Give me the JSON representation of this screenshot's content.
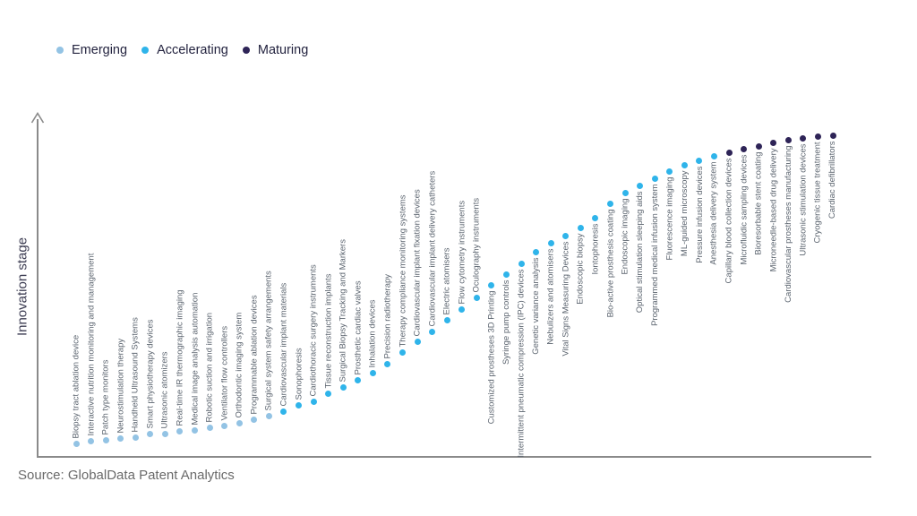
{
  "legend": {
    "items": [
      {
        "label": "Emerging",
        "color": "#93c3e4"
      },
      {
        "label": "Accelerating",
        "color": "#2fb4ea"
      },
      {
        "label": "Maturing",
        "color": "#2e2457"
      }
    ]
  },
  "source_text": "Source: GlobalData Patent Analytics",
  "chart_data": {
    "type": "scatter",
    "title": "",
    "xlabel": "",
    "ylabel": "Innovation stage",
    "grid": false,
    "legend_position": "top-left",
    "y_axis_numeric_labels": false,
    "score_note": "score is 0-100 innovation-stage height estimated from dot position; no numeric axis shown in chart",
    "stage_colors": {
      "Emerging": "#93c3e4",
      "Accelerating": "#2fb4ea",
      "Maturing": "#2e2457"
    },
    "points": [
      {
        "label": "Biopsy tract ablation device",
        "stage": "Emerging",
        "score": 4.1
      },
      {
        "label": "Interactive nutrition monitoring and management",
        "stage": "Emerging",
        "score": 4.7
      },
      {
        "label": "Patch type monitors",
        "stage": "Emerging",
        "score": 5.2
      },
      {
        "label": "Neurostimulation therapy",
        "stage": "Emerging",
        "score": 5.5
      },
      {
        "label": "Handheld Ultrasound Systems",
        "stage": "Emerging",
        "score": 6.0
      },
      {
        "label": "Smart physiotherapy devices",
        "stage": "Emerging",
        "score": 6.9
      },
      {
        "label": "Ultrasonic atomizers",
        "stage": "Emerging",
        "score": 7.1
      },
      {
        "label": "Real-time IR thermographic imaging",
        "stage": "Emerging",
        "score": 7.7
      },
      {
        "label": "Medical image analysis automation",
        "stage": "Emerging",
        "score": 8.2
      },
      {
        "label": "Robotic suction and irrigation",
        "stage": "Emerging",
        "score": 8.8
      },
      {
        "label": "Ventilator flow controllers",
        "stage": "Emerging",
        "score": 9.6
      },
      {
        "label": "Orthodontic imaging system",
        "stage": "Emerging",
        "score": 10.4
      },
      {
        "label": "Programmable ablation devices",
        "stage": "Emerging",
        "score": 11.3
      },
      {
        "label": "Surgical system safety arrangements",
        "stage": "Emerging",
        "score": 12.4
      },
      {
        "label": "Cardiovascular implant materials",
        "stage": "Accelerating",
        "score": 14.0
      },
      {
        "label": "Sonophoresis",
        "stage": "Accelerating",
        "score": 15.7
      },
      {
        "label": "Cardiothoracic surgery instruments",
        "stage": "Accelerating",
        "score": 17.0
      },
      {
        "label": "Tissue reconstruction implants",
        "stage": "Accelerating",
        "score": 19.5
      },
      {
        "label": "Surgical Biopsy Tracking and Markers",
        "stage": "Accelerating",
        "score": 21.4
      },
      {
        "label": "Prosthetic cardiac valves",
        "stage": "Accelerating",
        "score": 23.6
      },
      {
        "label": "Inhalation devices",
        "stage": "Accelerating",
        "score": 25.8
      },
      {
        "label": "Precision radiotherapy",
        "stage": "Accelerating",
        "score": 28.3
      },
      {
        "label": "Therapy compliance monitoring systems",
        "stage": "Accelerating",
        "score": 31.9
      },
      {
        "label": "Cardiovascular implant fixation devices",
        "stage": "Accelerating",
        "score": 35.2
      },
      {
        "label": "Cardiovascular implant delivery catheters",
        "stage": "Accelerating",
        "score": 38.2
      },
      {
        "label": "Electric atomisers",
        "stage": "Accelerating",
        "score": 42.0
      },
      {
        "label": "Flow cytometry instruments",
        "stage": "Accelerating",
        "score": 45.3
      },
      {
        "label": "Oculography instruments",
        "stage": "Accelerating",
        "score": 48.9
      },
      {
        "label": "Customized prostheses 3D Printing",
        "stage": "Accelerating",
        "score": 52.5
      },
      {
        "label": "Syringe pump controls",
        "stage": "Accelerating",
        "score": 56.0
      },
      {
        "label": "Intermittent pneumatic compression (IPC) devices",
        "stage": "Accelerating",
        "score": 59.3
      },
      {
        "label": "Genetic variance analysis",
        "stage": "Accelerating",
        "score": 62.9
      },
      {
        "label": "Nebulizers and atomisers",
        "stage": "Accelerating",
        "score": 65.4
      },
      {
        "label": "Vital Signs Measuring Devices",
        "stage": "Accelerating",
        "score": 67.6
      },
      {
        "label": "Endoscopic biopsy",
        "stage": "Accelerating",
        "score": 70.3
      },
      {
        "label": "Iontophoresis",
        "stage": "Accelerating",
        "score": 73.1
      },
      {
        "label": "Bio-active prosthesis coating",
        "stage": "Accelerating",
        "score": 77.7
      },
      {
        "label": "Endoscopic imaging",
        "stage": "Accelerating",
        "score": 81.0
      },
      {
        "label": "Optical stimulation sleeping aids",
        "stage": "Accelerating",
        "score": 83.2
      },
      {
        "label": "Programmed medical infusion system",
        "stage": "Accelerating",
        "score": 85.4
      },
      {
        "label": "Fluorescence imaging",
        "stage": "Accelerating",
        "score": 87.6
      },
      {
        "label": "ML-guided microscopy",
        "stage": "Accelerating",
        "score": 89.3
      },
      {
        "label": "Pressure infusion devices",
        "stage": "Accelerating",
        "score": 90.9
      },
      {
        "label": "Anesthesia delivery system",
        "stage": "Accelerating",
        "score": 92.3
      },
      {
        "label": "Capillary blood collection devices",
        "stage": "Maturing",
        "score": 93.4
      },
      {
        "label": "Microfluidic sampling devices",
        "stage": "Maturing",
        "score": 94.5
      },
      {
        "label": "Bioresorbable stent coating",
        "stage": "Maturing",
        "score": 95.3
      },
      {
        "label": "Microneedle-based drug delivery",
        "stage": "Maturing",
        "score": 96.4
      },
      {
        "label": "Cardiovascular prostheses manufacturing",
        "stage": "Maturing",
        "score": 97.0
      },
      {
        "label": "Ultrasonic stimulation devices",
        "stage": "Maturing",
        "score": 97.8
      },
      {
        "label": "Cryogenic tissue treatment",
        "stage": "Maturing",
        "score": 98.1
      },
      {
        "label": "Cardiac defibrillators",
        "stage": "Maturing",
        "score": 98.6
      }
    ]
  }
}
